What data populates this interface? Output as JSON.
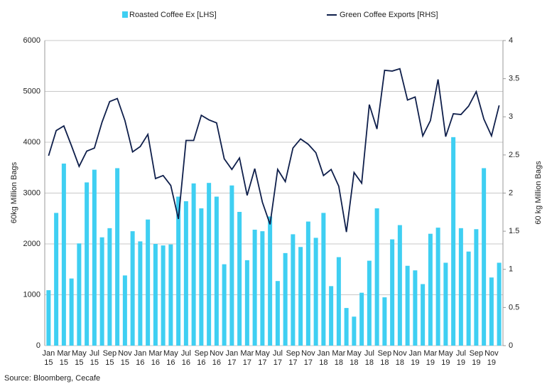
{
  "chart_data": {
    "type": "bar",
    "y_label": "60kg Million Bags",
    "y2_label": "60 kg Million Bags",
    "source": "Source: Bloomberg, Cecafe",
    "categories": [
      "Jan 15",
      null,
      "Mar 15",
      null,
      "May 15",
      null,
      "Jul 15",
      null,
      "Sep 15",
      null,
      "Nov 15",
      null,
      "Jan 16",
      null,
      "Mar 16",
      null,
      "May 16",
      null,
      "Jul 16",
      null,
      "Sep 16",
      null,
      "Nov 16",
      null,
      "Jan 17",
      null,
      "Mar 17",
      null,
      "May 17",
      null,
      "Jul 17",
      null,
      "Sep 17",
      null,
      "Nov 17",
      null,
      "Jan 18",
      null,
      "Mar 18",
      null,
      "May 18",
      null,
      "Jul 18",
      null,
      "Sep 18",
      null,
      "Nov 18",
      null,
      "Jan 19",
      null,
      "Mar 19",
      null,
      "May 19",
      null,
      "Jul 19",
      null,
      "Sep 19",
      null,
      "Nov 19",
      null
    ],
    "series": [
      {
        "name": "Roasted Coffee Ex [LHS]",
        "type": "bar",
        "color": "#3fcff2",
        "values": [
          1090,
          2610,
          3580,
          1320,
          2010,
          3210,
          3460,
          2130,
          2310,
          3490,
          1380,
          2250,
          2050,
          2480,
          2000,
          1970,
          1990,
          2930,
          2840,
          3190,
          2700,
          3200,
          2930,
          1600,
          3150,
          2630,
          1680,
          2280,
          2250,
          2540,
          1270,
          1820,
          2190,
          1940,
          2440,
          2120,
          2610,
          1170,
          1740,
          740,
          570,
          1040,
          1670,
          2700,
          950,
          2090,
          2370,
          1570,
          1480,
          1210,
          2200,
          2320,
          1630,
          4100,
          2310,
          1850,
          2290,
          3490,
          1340,
          1630
        ]
      },
      {
        "name": "Green Coffee Exports [RHS]",
        "type": "line",
        "axis": "y2",
        "color": "#0f1f4b",
        "values": [
          2.49,
          2.82,
          2.88,
          2.62,
          2.35,
          2.55,
          2.59,
          2.93,
          3.2,
          3.24,
          2.95,
          2.54,
          2.61,
          2.77,
          2.19,
          2.23,
          2.1,
          1.66,
          2.69,
          2.69,
          3.02,
          2.96,
          2.92,
          2.45,
          2.31,
          2.46,
          1.97,
          2.32,
          1.88,
          1.59,
          2.31,
          2.15,
          2.59,
          2.71,
          2.64,
          2.53,
          2.23,
          2.31,
          2.09,
          1.49,
          2.27,
          2.13,
          3.16,
          2.84,
          3.61,
          3.6,
          3.63,
          3.22,
          3.26,
          2.75,
          2.95,
          3.49,
          2.74,
          3.04,
          3.03,
          3.14,
          3.33,
          2.97,
          2.75,
          3.15
        ]
      }
    ],
    "ylim": [
      0,
      6000
    ],
    "yticks": [
      0,
      1000,
      2000,
      3000,
      4000,
      5000,
      6000
    ],
    "y2lim": [
      0,
      4
    ],
    "y2ticks": [
      0,
      0.5,
      1,
      1.5,
      2,
      2.5,
      3,
      3.5,
      4
    ],
    "grid": true
  }
}
